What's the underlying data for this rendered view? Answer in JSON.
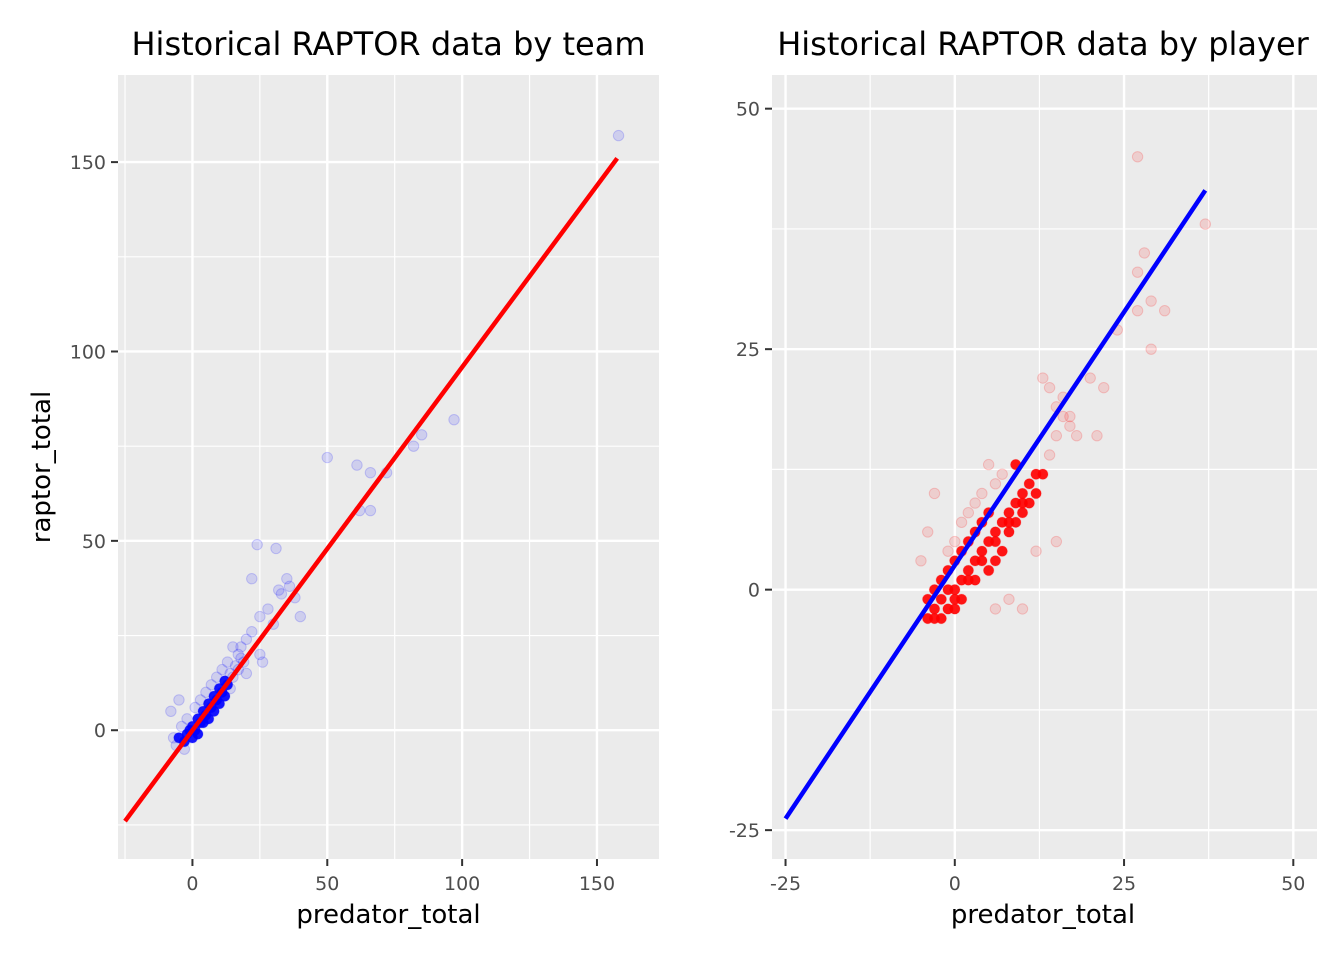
{
  "chart_data": [
    {
      "type": "scatter",
      "title": "Historical RAPTOR data by team",
      "xlabel": "predator_total",
      "ylabel": "raptor_total",
      "xlim": [
        -27.6,
        173
      ],
      "ylim": [
        -34,
        173
      ],
      "xticks": [
        0,
        50,
        100,
        150
      ],
      "yticks": [
        0,
        50,
        100,
        150
      ],
      "grid": true,
      "point_color": "#0000ff",
      "line_color": "#ff0000",
      "background": "#ebebeb",
      "trend_line": {
        "x": [
          -25,
          157.5
        ],
        "y": [
          -24,
          151
        ]
      },
      "points": [
        [
          -5,
          -2
        ],
        [
          -3,
          -3
        ],
        [
          -2,
          -1
        ],
        [
          -1,
          0
        ],
        [
          0,
          1
        ],
        [
          1,
          0
        ],
        [
          2,
          3
        ],
        [
          3,
          2
        ],
        [
          4,
          5
        ],
        [
          5,
          4
        ],
        [
          6,
          7
        ],
        [
          7,
          6
        ],
        [
          8,
          9
        ],
        [
          9,
          8
        ],
        [
          10,
          11
        ],
        [
          11,
          10
        ],
        [
          12,
          13
        ],
        [
          13,
          12
        ],
        [
          14,
          15
        ],
        [
          15,
          14
        ],
        [
          16,
          17
        ],
        [
          17,
          16
        ],
        [
          18,
          19
        ],
        [
          19,
          18
        ],
        [
          -4,
          1
        ],
        [
          -2,
          3
        ],
        [
          0,
          -2
        ],
        [
          2,
          -1
        ],
        [
          4,
          2
        ],
        [
          6,
          3
        ],
        [
          8,
          5
        ],
        [
          10,
          7
        ],
        [
          12,
          9
        ],
        [
          14,
          11
        ],
        [
          3,
          8
        ],
        [
          5,
          10
        ],
        [
          7,
          12
        ],
        [
          9,
          14
        ],
        [
          11,
          16
        ],
        [
          1,
          6
        ],
        [
          13,
          18
        ],
        [
          15,
          22
        ],
        [
          17,
          20
        ],
        [
          20,
          24
        ],
        [
          22,
          26
        ],
        [
          25,
          30
        ],
        [
          28,
          32
        ],
        [
          30,
          28
        ],
        [
          32,
          37
        ],
        [
          35,
          40
        ],
        [
          33,
          36
        ],
        [
          36,
          38
        ],
        [
          38,
          35
        ],
        [
          31,
          48
        ],
        [
          24,
          49
        ],
        [
          22,
          40
        ],
        [
          61,
          70
        ],
        [
          66,
          68
        ],
        [
          62,
          58
        ],
        [
          66,
          58
        ],
        [
          72,
          68
        ],
        [
          82,
          75
        ],
        [
          85,
          78
        ],
        [
          97,
          82
        ],
        [
          50,
          72
        ],
        [
          158,
          157
        ],
        [
          -6,
          -4
        ],
        [
          -7,
          -2
        ],
        [
          -3,
          -5
        ],
        [
          20,
          15
        ],
        [
          18,
          22
        ],
        [
          25,
          20
        ],
        [
          26,
          18
        ],
        [
          40,
          30
        ],
        [
          -5,
          8
        ],
        [
          -8,
          5
        ]
      ]
    },
    {
      "type": "scatter",
      "title": "Historical RAPTOR data by player",
      "xlabel": "predator_total",
      "ylabel": "",
      "xlim": [
        -27,
        53.5
      ],
      "ylim": [
        -28,
        53.5
      ],
      "xticks": [
        -25,
        0,
        25,
        50
      ],
      "yticks": [
        -25,
        0,
        25,
        50
      ],
      "grid": true,
      "point_color": "#ff0000",
      "line_color": "#0000ff",
      "background": "#ebebeb",
      "trend_line": {
        "x": [
          -25,
          37
        ],
        "y": [
          -23.8,
          41.5
        ]
      },
      "points": [
        [
          -3,
          -2
        ],
        [
          -2,
          -1
        ],
        [
          -1,
          -2
        ],
        [
          0,
          0
        ],
        [
          1,
          1
        ],
        [
          0,
          -1
        ],
        [
          -1,
          0
        ],
        [
          2,
          2
        ],
        [
          3,
          3
        ],
        [
          2,
          1
        ],
        [
          4,
          4
        ],
        [
          5,
          5
        ],
        [
          4,
          3
        ],
        [
          6,
          6
        ],
        [
          7,
          7
        ],
        [
          6,
          5
        ],
        [
          8,
          8
        ],
        [
          9,
          9
        ],
        [
          8,
          7
        ],
        [
          10,
          10
        ],
        [
          11,
          11
        ],
        [
          10,
          9
        ],
        [
          12,
          12
        ],
        [
          13,
          12
        ],
        [
          -2,
          1
        ],
        [
          -1,
          2
        ],
        [
          0,
          3
        ],
        [
          1,
          4
        ],
        [
          2,
          5
        ],
        [
          3,
          6
        ],
        [
          4,
          7
        ],
        [
          5,
          8
        ],
        [
          -3,
          0
        ],
        [
          -4,
          -1
        ],
        [
          -2,
          -3
        ],
        [
          0,
          -2
        ],
        [
          1,
          -1
        ],
        [
          3,
          1
        ],
        [
          5,
          2
        ],
        [
          6,
          3
        ],
        [
          7,
          4
        ],
        [
          8,
          6
        ],
        [
          9,
          7
        ],
        [
          10,
          8
        ],
        [
          11,
          9
        ],
        [
          12,
          10
        ],
        [
          0,
          5
        ],
        [
          -1,
          4
        ],
        [
          1,
          7
        ],
        [
          2,
          8
        ],
        [
          3,
          9
        ],
        [
          4,
          10
        ],
        [
          6,
          11
        ],
        [
          7,
          12
        ],
        [
          5,
          13
        ],
        [
          9,
          13
        ],
        [
          14,
          14
        ],
        [
          15,
          16
        ],
        [
          16,
          18
        ],
        [
          17,
          17
        ],
        [
          18,
          16
        ],
        [
          16,
          20
        ],
        [
          15,
          19
        ],
        [
          14,
          21
        ],
        [
          13,
          22
        ],
        [
          17,
          18
        ],
        [
          20,
          22
        ],
        [
          22,
          21
        ],
        [
          21,
          16
        ],
        [
          24,
          27
        ],
        [
          27,
          29
        ],
        [
          27,
          33
        ],
        [
          28,
          35
        ],
        [
          29,
          25
        ],
        [
          31,
          29
        ],
        [
          29,
          30
        ],
        [
          27,
          45
        ],
        [
          37,
          38
        ],
        [
          -3,
          10
        ],
        [
          -4,
          6
        ],
        [
          -5,
          3
        ],
        [
          10,
          -2
        ],
        [
          15,
          5
        ],
        [
          12,
          4
        ],
        [
          8,
          -1
        ],
        [
          6,
          -2
        ],
        [
          -4,
          -3
        ],
        [
          -3,
          -3
        ]
      ]
    }
  ]
}
